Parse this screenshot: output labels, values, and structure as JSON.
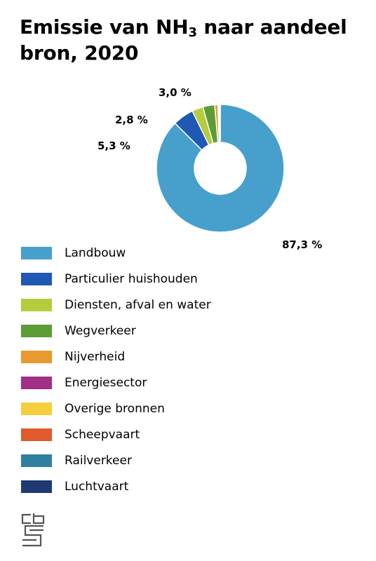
{
  "title": {
    "part1": "Emissie van NH",
    "subscript": "3",
    "part2": " naar aandeel bron, 2020"
  },
  "chart_data": {
    "type": "pie",
    "donut": true,
    "title": "Emissie van NH3 naar aandeel bron, 2020",
    "series": [
      {
        "name": "Landbouw",
        "value": 87.3,
        "label": "87,3 %",
        "color": "#479fcc"
      },
      {
        "name": "Particulier huishouden",
        "value": 5.3,
        "label": "5,3 %",
        "color": "#1f58b5"
      },
      {
        "name": "Diensten, afval en water",
        "value": 2.8,
        "label": "2,8 %",
        "color": "#b4cc3e"
      },
      {
        "name": "Wegverkeer",
        "value": 3.0,
        "label": "3,0 %",
        "color": "#5d9c35"
      },
      {
        "name": "Nijverheid",
        "value": 0.8,
        "label": "",
        "color": "#e8992f"
      },
      {
        "name": "Energiesector",
        "value": 0.2,
        "label": "",
        "color": "#a22e85"
      },
      {
        "name": "Overige bronnen",
        "value": 0.2,
        "label": "",
        "color": "#f5ce3e"
      },
      {
        "name": "Scheepvaart",
        "value": 0.1,
        "label": "",
        "color": "#e05a2b"
      },
      {
        "name": "Railverkeer",
        "value": 0.05,
        "label": "",
        "color": "#2f7fa0"
      },
      {
        "name": "Luchtvaart",
        "value": 0.05,
        "label": "",
        "color": "#1f3a73"
      }
    ],
    "legend_position": "bottom-left"
  },
  "logo": {
    "name": "cbs-logo"
  }
}
